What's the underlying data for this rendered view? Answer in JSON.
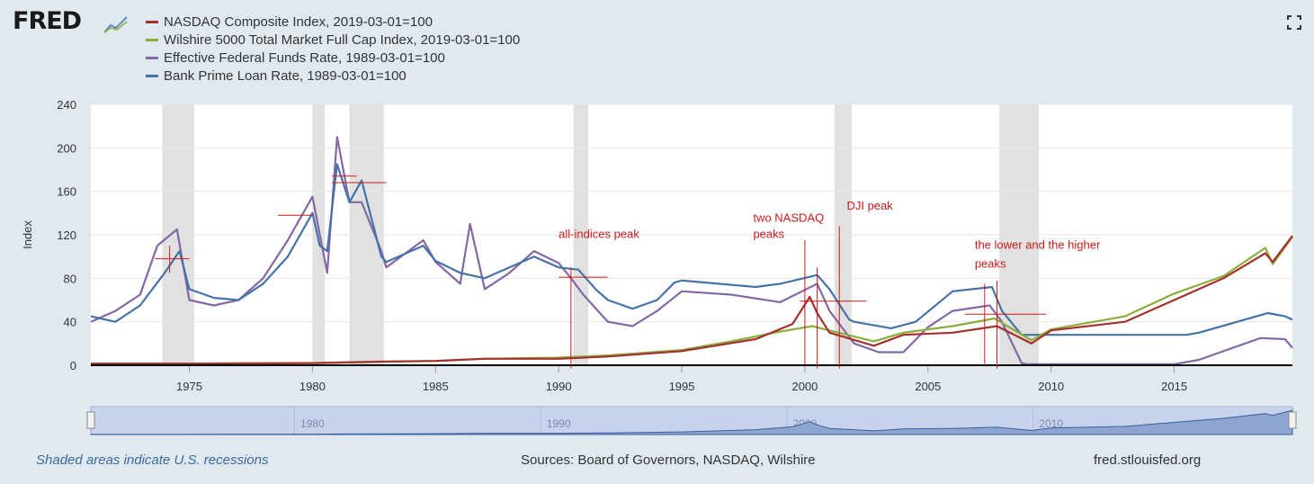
{
  "header": {
    "logo_text": "FRED",
    "logo_icon": "fred-graph-icon",
    "fullscreen_icon": "fullscreen-icon"
  },
  "legend": [
    {
      "label": "NASDAQ Composite Index, 2019-03-01=100",
      "color": "#a6302c"
    },
    {
      "label": "Wilshire 5000 Total Market Full Cap Index, 2019-03-01=100",
      "color": "#8cad3e"
    },
    {
      "label": "Effective Federal Funds Rate, 1989-03-01=100",
      "color": "#8467a5"
    },
    {
      "label": "Bank Prime Loan Rate, 1989-03-01=100",
      "color": "#4572a7"
    }
  ],
  "chart_data": {
    "type": "line",
    "ylabel": "Index",
    "xlim": [
      1971.0,
      2019.8
    ],
    "ylim": [
      0,
      240
    ],
    "yticks": [
      0,
      40,
      80,
      120,
      160,
      200,
      240
    ],
    "xticks": [
      1975,
      1980,
      1985,
      1990,
      1995,
      2000,
      2005,
      2010,
      2015
    ],
    "grid": "horizontal",
    "recessions": [
      [
        1973.9,
        1975.2
      ],
      [
        1980.0,
        1980.5
      ],
      [
        1981.5,
        1982.9
      ],
      [
        1990.6,
        1991.2
      ],
      [
        2001.2,
        2001.9
      ],
      [
        2007.9,
        2009.5
      ]
    ],
    "series": [
      {
        "name": "NASDAQ Composite Index, 2019-03-01=100",
        "color": "#a6302c",
        "x": [
          1971,
          1975,
          1980,
          1983,
          1985,
          1987,
          1990,
          1992,
          1995,
          1998,
          1999.5,
          2000.2,
          2000.5,
          2001,
          2002.8,
          2004,
          2006,
          2007.8,
          2009.2,
          2010,
          2013,
          2015,
          2017,
          2018.7,
          2019,
          2019.8
        ],
        "y": [
          1.5,
          1.5,
          2,
          3.5,
          4,
          6,
          6,
          8,
          13,
          24,
          38,
          63,
          48,
          30,
          18,
          28,
          30,
          36,
          20,
          32,
          40,
          60,
          80,
          103,
          95,
          119
        ]
      },
      {
        "name": "Wilshire 5000 Total Market Full Cap Index, 2019-03-01=100",
        "color": "#8cad3e",
        "x": [
          1971,
          1975,
          1980,
          1985,
          1987,
          1990,
          1992,
          1995,
          1997,
          1999,
          2000.3,
          2001,
          2002.8,
          2004,
          2006,
          2007.7,
          2009.2,
          2010,
          2013,
          2015,
          2017,
          2018.7,
          2019,
          2019.8
        ],
        "y": [
          1.5,
          1.5,
          2,
          4,
          6,
          7,
          9,
          14,
          22,
          31,
          36,
          32,
          22,
          30,
          36,
          43,
          23,
          33,
          45,
          66,
          82,
          108,
          93,
          118
        ]
      },
      {
        "name": "Effective Federal Funds Rate, 1989-03-01=100",
        "color": "#8467a5",
        "x": [
          1971,
          1972,
          1973,
          1973.7,
          1974.5,
          1975,
          1976,
          1977,
          1978,
          1979,
          1980,
          1980.3,
          1980.6,
          1981,
          1981.5,
          1982,
          1982.8,
          1983,
          1984.5,
          1985,
          1986,
          1986.4,
          1987,
          1988,
          1989,
          1990,
          1990.5,
          1991,
          1992,
          1993,
          1994,
          1995,
          1997,
          1999,
          2000.5,
          2001,
          2002,
          2003,
          2004,
          2005,
          2006,
          2007.5,
          2008,
          2008.8,
          2009,
          2015,
          2016,
          2018.5,
          2019.5,
          2019.8
        ],
        "y": [
          40,
          50,
          65,
          110,
          125,
          60,
          55,
          60,
          80,
          115,
          155,
          120,
          85,
          210,
          150,
          150,
          105,
          90,
          115,
          95,
          75,
          130,
          70,
          85,
          105,
          94,
          80,
          65,
          40,
          36,
          50,
          68,
          65,
          58,
          75,
          50,
          20,
          12,
          12,
          35,
          50,
          55,
          40,
          2,
          1,
          1,
          5,
          25,
          24,
          16
        ]
      },
      {
        "name": "Bank Prime Loan Rate, 1989-03-01=100",
        "color": "#4572a7",
        "x": [
          1971,
          1972,
          1973,
          1974,
          1974.6,
          1975,
          1976,
          1977,
          1978,
          1979,
          1980,
          1980.3,
          1980.6,
          1981,
          1981.5,
          1982,
          1982.8,
          1983,
          1984.5,
          1985,
          1986,
          1987,
          1988,
          1989,
          1990,
          1990.8,
          1991.5,
          1992,
          1993,
          1994,
          1994.7,
          1995,
          1998,
          1999,
          2000.5,
          2001,
          2001.8,
          2002,
          2003.5,
          2004.5,
          2006,
          2007.6,
          2008,
          2008.8,
          2009,
          2015.5,
          2016,
          2018.8,
          2019.5,
          2019.8
        ],
        "y": [
          45,
          40,
          55,
          85,
          105,
          70,
          62,
          60,
          75,
          100,
          140,
          110,
          105,
          185,
          150,
          170,
          100,
          95,
          110,
          96,
          85,
          80,
          90,
          100,
          90,
          88,
          70,
          60,
          52,
          60,
          76,
          78,
          72,
          75,
          83,
          70,
          42,
          40,
          34,
          40,
          68,
          72,
          50,
          28,
          28,
          28,
          30,
          48,
          45,
          42
        ]
      }
    ],
    "annotations": [
      {
        "text": "all-indices peak",
        "x": 1990.0,
        "y": 117
      },
      {
        "text": "two NASDAQ",
        "x": 1997.9,
        "y": 132
      },
      {
        "text": "peaks",
        "x": 1997.9,
        "y": 117
      },
      {
        "text": "DJI peak",
        "x": 2001.7,
        "y": 143
      },
      {
        "text": "the lower and the higher",
        "x": 2006.9,
        "y": 107
      },
      {
        "text": "peaks",
        "x": 2006.9,
        "y": 90
      }
    ],
    "navigator_ticks": [
      1980,
      1990,
      2000,
      2010
    ]
  },
  "footer": {
    "note": "Shaded areas indicate U.S. recessions",
    "sources": "Sources: Board of Governors, NASDAQ, Wilshire",
    "url": "fred.stlouisfed.org"
  }
}
